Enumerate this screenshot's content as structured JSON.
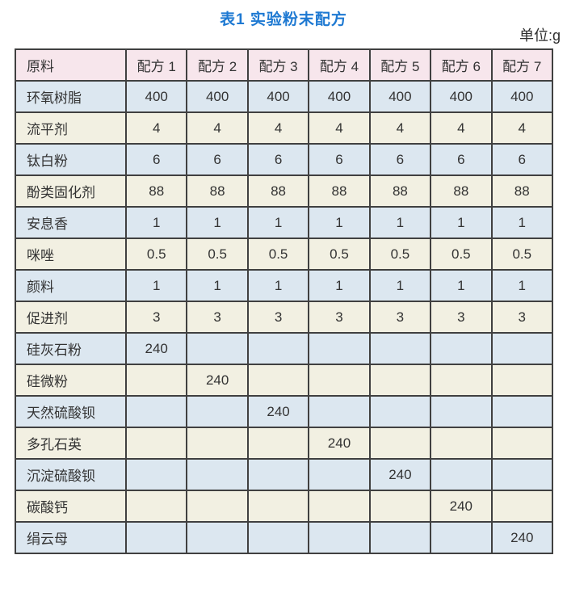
{
  "page": {
    "title": "表1 实验粉末配方",
    "unit_label": "单位:g"
  },
  "colors": {
    "title_blue": "#1e79d2",
    "header_bg": "#f7e6ec",
    "row_blue_bg": "#dce7f0",
    "row_cream_bg": "#f2f0e2",
    "border": "#404040",
    "text": "#333333"
  },
  "chart_data": {
    "type": "table",
    "title": "表1 实验粉末配方",
    "unit": "g",
    "columns": [
      "原料",
      "配方 1",
      "配方 2",
      "配方 3",
      "配方 4",
      "配方 5",
      "配方 6",
      "配方 7"
    ],
    "rows": [
      [
        "环氧树脂",
        "400",
        "400",
        "400",
        "400",
        "400",
        "400",
        "400"
      ],
      [
        "流平剂",
        "4",
        "4",
        "4",
        "4",
        "4",
        "4",
        "4"
      ],
      [
        "钛白粉",
        "6",
        "6",
        "6",
        "6",
        "6",
        "6",
        "6"
      ],
      [
        "酚类固化剂",
        "88",
        "88",
        "88",
        "88",
        "88",
        "88",
        "88"
      ],
      [
        "安息香",
        "1",
        "1",
        "1",
        "1",
        "1",
        "1",
        "1"
      ],
      [
        "咪唑",
        "0.5",
        "0.5",
        "0.5",
        "0.5",
        "0.5",
        "0.5",
        "0.5"
      ],
      [
        "颜料",
        "1",
        "1",
        "1",
        "1",
        "1",
        "1",
        "1"
      ],
      [
        "促进剂",
        "3",
        "3",
        "3",
        "3",
        "3",
        "3",
        "3"
      ],
      [
        "硅灰石粉",
        "240",
        "",
        "",
        "",
        "",
        "",
        ""
      ],
      [
        "硅微粉",
        "",
        "240",
        "",
        "",
        "",
        "",
        ""
      ],
      [
        "天然硫酸钡",
        "",
        "",
        "240",
        "",
        "",
        "",
        ""
      ],
      [
        "多孔石英",
        "",
        "",
        "",
        "240",
        "",
        "",
        ""
      ],
      [
        "沉淀硫酸钡",
        "",
        "",
        "",
        "",
        "240",
        "",
        ""
      ],
      [
        "碳酸钙",
        "",
        "",
        "",
        "",
        "",
        "240",
        ""
      ],
      [
        "绢云母",
        "",
        "",
        "",
        "",
        "",
        "",
        "240"
      ]
    ]
  }
}
